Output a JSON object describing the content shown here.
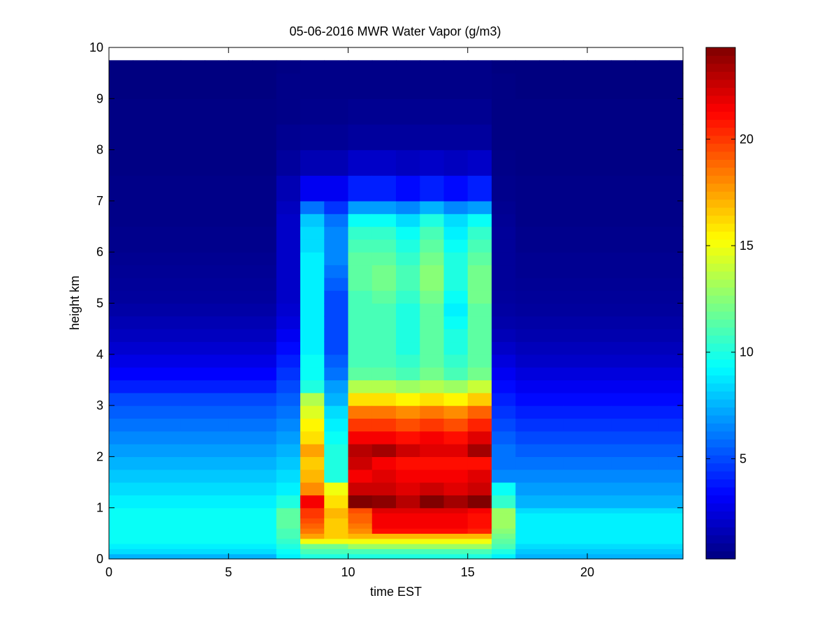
{
  "chart_data": {
    "type": "heatmap",
    "title": "05-06-2016 MWR Water Vapor (g/m3)",
    "xlabel": "time EST",
    "ylabel": "height km",
    "xlim": [
      0,
      24
    ],
    "ylim": [
      0,
      10
    ],
    "x_ticks": [
      0,
      5,
      10,
      15,
      20
    ],
    "y_ticks": [
      0,
      1,
      2,
      3,
      4,
      5,
      6,
      7,
      8,
      9,
      10
    ],
    "colorbar": {
      "min": 0.3,
      "max": 24.3,
      "ticks": [
        5,
        10,
        15,
        20
      ],
      "colormap": "jet"
    },
    "grid": false,
    "x_centers_hours": [
      0.5,
      1.5,
      2.5,
      3.5,
      4.5,
      5.5,
      6.5,
      7.5,
      8.5,
      9.5,
      10.5,
      11.5,
      12.5,
      13.5,
      14.5,
      15.5,
      16.5,
      17.5,
      18.5,
      19.5,
      20.5,
      21.5,
      22.5,
      23.5
    ],
    "data_top_km": 9.75,
    "heights_km": [
      0,
      0.1,
      0.2,
      0.3,
      0.4,
      0.5,
      0.6,
      0.7,
      0.8,
      0.9,
      1.0,
      1.25,
      1.5,
      1.75,
      2.0,
      2.25,
      2.5,
      2.75,
      3.0,
      3.25,
      3.5,
      3.75,
      4.0,
      4.25,
      4.5,
      4.75,
      5.0,
      5.25,
      5.5,
      5.75,
      6.0,
      6.25,
      6.5,
      6.75,
      7.0,
      7.5,
      8.0,
      8.5,
      9.0,
      9.5
    ],
    "profiles": [
      {
        "label": "night",
        "hours": [
          0,
          1,
          2,
          3,
          4,
          5,
          6
        ],
        "values": [
          7.5,
          8.5,
          9,
          9.5,
          9.5,
          9.5,
          9.5,
          9.5,
          9.5,
          9.5,
          9,
          8.5,
          8,
          7.5,
          7,
          6.5,
          6,
          5.5,
          5,
          4,
          3.3,
          2.7,
          2.2,
          1.8,
          1.5,
          1.2,
          1,
          0.9,
          0.8,
          0.7,
          0.6,
          0.6,
          0.5,
          0.5,
          0.5,
          0.4,
          0.4,
          0.4,
          0.3,
          0.3
        ]
      },
      {
        "label": "h7",
        "hours": [
          7
        ],
        "values": [
          9,
          9.5,
          10,
          10.5,
          11,
          11,
          11.5,
          11.5,
          11.5,
          11.5,
          10,
          9,
          8.5,
          8,
          7.5,
          7,
          6.5,
          6,
          5.5,
          5,
          4.5,
          4,
          3.5,
          3,
          2.5,
          2.2,
          2,
          2,
          2,
          2,
          2,
          2,
          2,
          1.8,
          1.5,
          1,
          0.7,
          0.5,
          0.5,
          0.4
        ]
      },
      {
        "label": "h8",
        "hours": [
          8
        ],
        "values": [
          10,
          11,
          12,
          15,
          17.5,
          18.5,
          19,
          19.5,
          20,
          20,
          21.5,
          18,
          17,
          16.5,
          17.5,
          16,
          15.5,
          14.5,
          13.5,
          10,
          9.5,
          9.5,
          9,
          9,
          9,
          9,
          9,
          9,
          9,
          9,
          8.5,
          8.5,
          8,
          6,
          3,
          1.5,
          0.8,
          0.6,
          0.5,
          0.5
        ]
      },
      {
        "label": "h9",
        "hours": [
          9
        ],
        "values": [
          10,
          11,
          12,
          15,
          16.5,
          16.5,
          16.5,
          16.5,
          17,
          17,
          16,
          15,
          10,
          10,
          10,
          9.5,
          9,
          8.5,
          7.5,
          7,
          6,
          5.5,
          5,
          5,
          5,
          5,
          5,
          5.5,
          6,
          6.5,
          6.5,
          6.5,
          6,
          4.5,
          3,
          1.5,
          0.8,
          0.6,
          0.5,
          0.5
        ]
      },
      {
        "label": "h10",
        "hours": [
          10
        ],
        "values": [
          10,
          11,
          13,
          15,
          17,
          18,
          18.5,
          19,
          19,
          19.5,
          24.3,
          22.5,
          21.5,
          22.5,
          23,
          21.5,
          20,
          18.5,
          16,
          13.5,
          11.5,
          11,
          11,
          11,
          11,
          11,
          11,
          11.5,
          11.5,
          11.5,
          11,
          10.5,
          9.5,
          7,
          4,
          2,
          1,
          0.7,
          0.5,
          0.5
        ]
      },
      {
        "label": "h11",
        "hours": [
          11
        ],
        "values": [
          10,
          11,
          13,
          15,
          17,
          21,
          21.5,
          21.5,
          21.5,
          22,
          24,
          22.5,
          22,
          21.5,
          23.5,
          21.5,
          20,
          18.5,
          16,
          13.5,
          11.5,
          11,
          11,
          11,
          11,
          11,
          11.5,
          12,
          12,
          11.5,
          11,
          10.5,
          9.5,
          7,
          4,
          2,
          1,
          0.7,
          0.5,
          0.5
        ]
      },
      {
        "label": "h12",
        "hours": [
          12
        ],
        "values": [
          10,
          11,
          13,
          15,
          17,
          21,
          21.5,
          21.5,
          21.5,
          22,
          23,
          22,
          21.5,
          21,
          22.5,
          21,
          19.5,
          18,
          15.5,
          13,
          11,
          10.5,
          10,
          10,
          10,
          10,
          10.5,
          11,
          11,
          10.5,
          10,
          9.5,
          8.5,
          6.5,
          3.5,
          1.8,
          1,
          0.7,
          0.5,
          0.5
        ]
      },
      {
        "label": "h13",
        "hours": [
          13
        ],
        "values": [
          10,
          11,
          13,
          15,
          17,
          21,
          21.5,
          21.5,
          21.5,
          22,
          24.3,
          22.5,
          21.5,
          21,
          22,
          21.5,
          20,
          18.5,
          16,
          13.5,
          12,
          11.5,
          11.5,
          11.5,
          11.5,
          11.5,
          12,
          12.5,
          12.5,
          12,
          11.5,
          11,
          10,
          7.5,
          4,
          2,
          1,
          0.7,
          0.5,
          0.5
        ]
      },
      {
        "label": "h14",
        "hours": [
          14
        ],
        "values": [
          10,
          11,
          13,
          15,
          17,
          21,
          21.5,
          21.5,
          21.5,
          22,
          23.5,
          22,
          21.5,
          21,
          22,
          21,
          19.5,
          18,
          15.5,
          13,
          11,
          10.5,
          10,
          10,
          9.5,
          9,
          9.5,
          10,
          10,
          10,
          9.5,
          9,
          8.5,
          6.5,
          3.5,
          1.8,
          1,
          0.7,
          0.5,
          0.5
        ]
      },
      {
        "label": "h15",
        "hours": [
          15
        ],
        "values": [
          10,
          11,
          13,
          15,
          17,
          20.5,
          21,
          21,
          21,
          21.5,
          24.3,
          22.5,
          22,
          21,
          23.5,
          22,
          20.5,
          19,
          16.5,
          14,
          12,
          11.5,
          11.5,
          11.5,
          11.5,
          11.5,
          12,
          12,
          12,
          11.5,
          11,
          10.5,
          9.5,
          7,
          4,
          2,
          1,
          0.7,
          0.5,
          0.5
        ]
      },
      {
        "label": "h16",
        "hours": [
          16
        ],
        "values": [
          9,
          10,
          11,
          11.5,
          12,
          12.5,
          13,
          13,
          13,
          13,
          10.5,
          9.5,
          6.5,
          6,
          6,
          5.5,
          5,
          4.5,
          4,
          3.5,
          3,
          2.5,
          2,
          1.6,
          1.3,
          1.1,
          1,
          0.9,
          0.9,
          0.9,
          0.9,
          0.9,
          0.8,
          0.7,
          0.6,
          0.5,
          0.4,
          0.4,
          0.4,
          0.3
        ]
      },
      {
        "label": "evening",
        "hours": [
          17,
          18,
          19,
          20,
          21,
          22,
          23
        ],
        "values": [
          7.5,
          8,
          8.5,
          9,
          9,
          9,
          9,
          9,
          9,
          8.5,
          7.5,
          7,
          6.5,
          6,
          5.5,
          5,
          4.5,
          4,
          3.5,
          3,
          2.5,
          2,
          1.7,
          1.4,
          1.2,
          1,
          0.9,
          0.8,
          0.7,
          0.7,
          0.6,
          0.6,
          0.5,
          0.5,
          0.5,
          0.4,
          0.4,
          0.4,
          0.3,
          0.3
        ]
      }
    ]
  }
}
